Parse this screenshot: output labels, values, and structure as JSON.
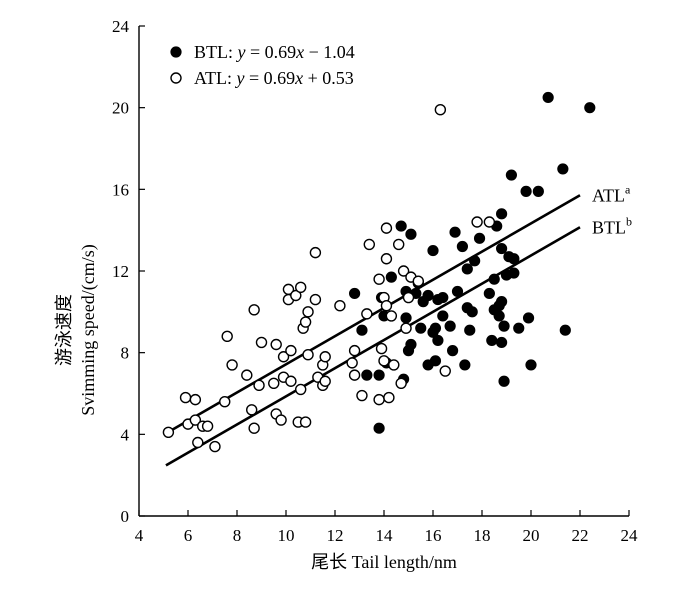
{
  "chart_data": {
    "type": "scatter",
    "xlabel": "尾长 Tail length/nm",
    "ylabel_cn": "游泳速度",
    "ylabel_en": "Svimming speed/(cm/s)",
    "xlim": [
      4,
      24
    ],
    "ylim": [
      0,
      24
    ],
    "x_ticks": [
      "4",
      "6",
      "8",
      "10",
      "12",
      "14",
      "16",
      "18",
      "20",
      "22",
      "24"
    ],
    "y_ticks": [
      "0",
      "4",
      "8",
      "12",
      "16",
      "20",
      "24"
    ],
    "grid": false,
    "legend_position": "top-left",
    "legend": [
      {
        "name": "BTL",
        "eq_prefix": "BTL: ",
        "eq_var_y": "y",
        "eq_mid": " = 0.69",
        "eq_var_x": "x",
        "eq_suffix": " − 1.04",
        "marker": "filled-circle"
      },
      {
        "name": "ATL",
        "eq_prefix": "ATL: ",
        "eq_var_y": "y",
        "eq_mid": " = 0.69",
        "eq_var_x": "x",
        "eq_suffix": " + 0.53",
        "marker": "open-circle"
      }
    ],
    "fit_lines": [
      {
        "series": "ATL",
        "label": "ATL",
        "label_sup": "a",
        "slope": 0.69,
        "intercept": 0.53,
        "x_range": [
          5.1,
          22.0
        ]
      },
      {
        "series": "BTL",
        "label": "BTL",
        "label_sup": "b",
        "slope": 0.69,
        "intercept": -1.04,
        "x_range": [
          5.1,
          22.0
        ]
      }
    ],
    "series": [
      {
        "name": "BTL",
        "marker": "filled",
        "points": [
          [
            12.8,
            10.9
          ],
          [
            13.1,
            9.1
          ],
          [
            13.3,
            6.9
          ],
          [
            13.8,
            4.3
          ],
          [
            13.8,
            6.9
          ],
          [
            13.9,
            10.7
          ],
          [
            14.0,
            9.8
          ],
          [
            14.1,
            7.5
          ],
          [
            14.3,
            11.7
          ],
          [
            14.7,
            14.2
          ],
          [
            14.8,
            6.7
          ],
          [
            14.9,
            9.7
          ],
          [
            14.9,
            11.0
          ],
          [
            15.0,
            8.1
          ],
          [
            15.1,
            13.8
          ],
          [
            15.1,
            8.4
          ],
          [
            15.3,
            10.9
          ],
          [
            15.4,
            11.4
          ],
          [
            15.5,
            9.2
          ],
          [
            15.6,
            10.5
          ],
          [
            15.8,
            7.4
          ],
          [
            15.8,
            10.8
          ],
          [
            16.0,
            9.0
          ],
          [
            16.0,
            13.0
          ],
          [
            16.1,
            9.2
          ],
          [
            16.1,
            7.6
          ],
          [
            16.2,
            8.6
          ],
          [
            16.2,
            10.6
          ],
          [
            16.4,
            10.7
          ],
          [
            16.4,
            9.8
          ],
          [
            16.7,
            9.3
          ],
          [
            16.8,
            8.1
          ],
          [
            16.9,
            13.9
          ],
          [
            17.0,
            11.0
          ],
          [
            17.2,
            13.2
          ],
          [
            17.3,
            7.4
          ],
          [
            17.4,
            10.2
          ],
          [
            17.4,
            12.1
          ],
          [
            17.5,
            9.1
          ],
          [
            17.6,
            10.0
          ],
          [
            17.7,
            12.5
          ],
          [
            17.9,
            13.6
          ],
          [
            18.3,
            10.9
          ],
          [
            18.4,
            8.6
          ],
          [
            18.5,
            10.1
          ],
          [
            18.5,
            11.6
          ],
          [
            18.6,
            14.2
          ],
          [
            18.7,
            9.8
          ],
          [
            18.7,
            10.3
          ],
          [
            18.8,
            14.8
          ],
          [
            18.8,
            13.1
          ],
          [
            18.8,
            10.5
          ],
          [
            18.8,
            8.5
          ],
          [
            18.9,
            6.6
          ],
          [
            18.9,
            9.3
          ],
          [
            19.0,
            11.8
          ],
          [
            19.1,
            12.7
          ],
          [
            19.2,
            16.7
          ],
          [
            19.3,
            11.9
          ],
          [
            19.3,
            12.6
          ],
          [
            19.5,
            9.2
          ],
          [
            19.8,
            15.9
          ],
          [
            19.9,
            9.7
          ],
          [
            20.0,
            7.4
          ],
          [
            20.3,
            15.9
          ],
          [
            20.7,
            20.5
          ],
          [
            21.3,
            17.0
          ],
          [
            21.4,
            9.1
          ],
          [
            22.4,
            20.0
          ]
        ]
      },
      {
        "name": "ATL",
        "marker": "open",
        "points": [
          [
            5.2,
            4.1
          ],
          [
            5.9,
            5.8
          ],
          [
            6.0,
            4.5
          ],
          [
            6.3,
            4.7
          ],
          [
            6.3,
            5.7
          ],
          [
            6.4,
            3.6
          ],
          [
            6.6,
            4.4
          ],
          [
            6.8,
            4.4
          ],
          [
            7.1,
            3.4
          ],
          [
            7.5,
            5.6
          ],
          [
            7.6,
            8.8
          ],
          [
            7.8,
            7.4
          ],
          [
            8.4,
            6.9
          ],
          [
            8.6,
            5.2
          ],
          [
            8.7,
            4.3
          ],
          [
            8.7,
            10.1
          ],
          [
            8.9,
            6.4
          ],
          [
            9.0,
            8.5
          ],
          [
            9.5,
            6.5
          ],
          [
            9.6,
            5.0
          ],
          [
            9.6,
            8.4
          ],
          [
            9.8,
            4.7
          ],
          [
            9.9,
            6.8
          ],
          [
            9.9,
            7.8
          ],
          [
            10.1,
            11.1
          ],
          [
            10.1,
            10.6
          ],
          [
            10.2,
            8.1
          ],
          [
            10.2,
            6.6
          ],
          [
            10.4,
            10.8
          ],
          [
            10.5,
            4.6
          ],
          [
            10.6,
            6.2
          ],
          [
            10.6,
            11.2
          ],
          [
            10.7,
            9.2
          ],
          [
            10.8,
            9.5
          ],
          [
            10.8,
            4.6
          ],
          [
            10.9,
            10.0
          ],
          [
            10.9,
            7.9
          ],
          [
            11.2,
            12.9
          ],
          [
            11.2,
            10.6
          ],
          [
            11.3,
            6.8
          ],
          [
            11.5,
            6.4
          ],
          [
            11.5,
            7.4
          ],
          [
            11.6,
            6.6
          ],
          [
            11.6,
            7.8
          ],
          [
            12.2,
            10.3
          ],
          [
            12.7,
            7.5
          ],
          [
            12.8,
            8.1
          ],
          [
            12.8,
            6.9
          ],
          [
            13.1,
            5.9
          ],
          [
            13.3,
            9.9
          ],
          [
            13.4,
            13.3
          ],
          [
            13.8,
            11.6
          ],
          [
            13.8,
            5.7
          ],
          [
            13.9,
            8.2
          ],
          [
            14.0,
            7.6
          ],
          [
            14.0,
            10.7
          ],
          [
            14.1,
            14.1
          ],
          [
            14.1,
            12.6
          ],
          [
            14.1,
            10.3
          ],
          [
            14.2,
            5.8
          ],
          [
            14.3,
            9.8
          ],
          [
            14.4,
            7.4
          ],
          [
            14.6,
            13.3
          ],
          [
            14.7,
            6.5
          ],
          [
            14.8,
            12.0
          ],
          [
            14.9,
            9.2
          ],
          [
            15.0,
            10.7
          ],
          [
            15.1,
            11.7
          ],
          [
            15.4,
            11.5
          ],
          [
            16.3,
            19.9
          ],
          [
            16.5,
            7.1
          ],
          [
            17.8,
            14.4
          ],
          [
            18.3,
            14.4
          ]
        ]
      }
    ]
  }
}
